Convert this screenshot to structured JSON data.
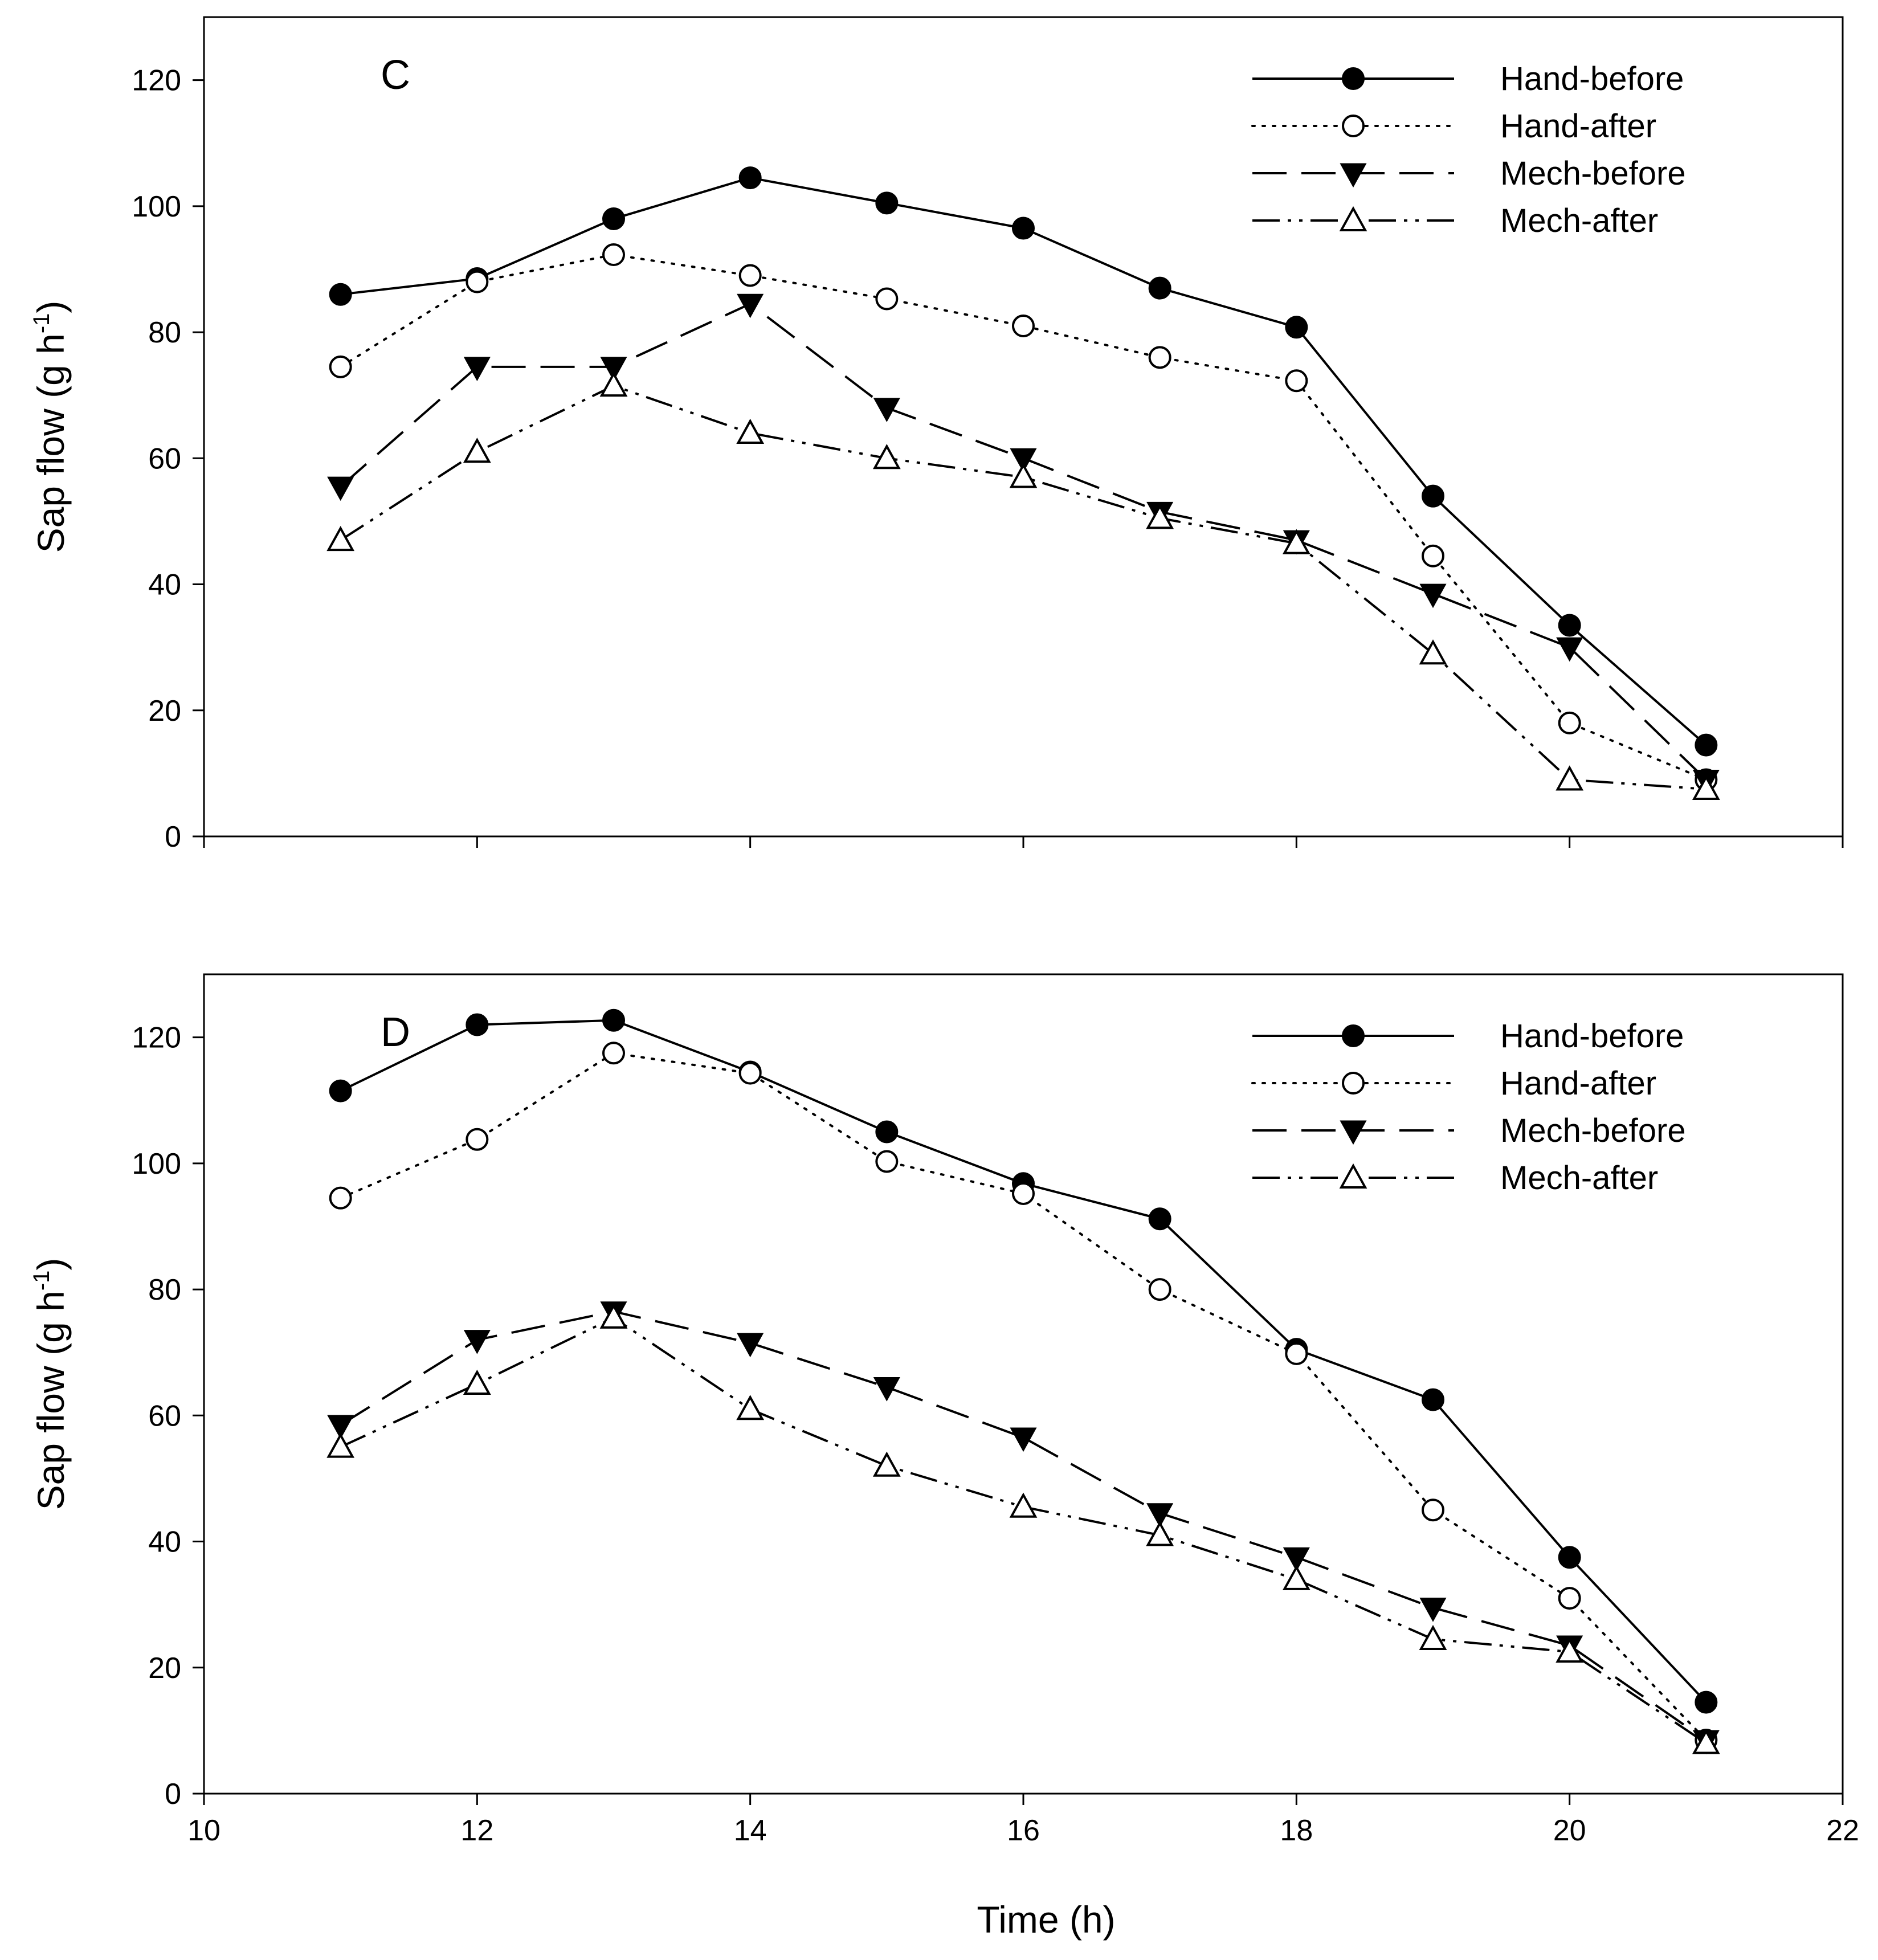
{
  "chart_data": [
    {
      "type": "line",
      "panel_label": "C",
      "title": "",
      "xlabel": "Time (h)",
      "ylabel": "Sap flow (g h⁻¹)",
      "xlim": [
        10,
        22
      ],
      "ylim": [
        0,
        130
      ],
      "xticks": [
        10,
        12,
        14,
        16,
        18,
        20,
        22
      ],
      "yticks": [
        0,
        20,
        40,
        60,
        80,
        100,
        120
      ],
      "x": [
        11,
        12,
        13,
        14,
        15,
        16,
        17,
        18,
        19,
        20,
        21
      ],
      "legend_position": "top-right",
      "series": [
        {
          "name": "Hand-before",
          "marker": "filled-circle",
          "linestyle": "solid",
          "values": [
            86,
            88.5,
            98,
            104.5,
            100.5,
            96.5,
            87,
            80.8,
            54,
            33.5,
            14.5
          ]
        },
        {
          "name": "Hand-after",
          "marker": "open-circle",
          "linestyle": "dotted",
          "values": [
            74.5,
            88,
            92.3,
            89,
            85.3,
            81,
            76,
            72.3,
            44.5,
            18,
            9
          ]
        },
        {
          "name": "Mech-before",
          "marker": "filled-triangle-down",
          "linestyle": "dashed",
          "values": [
            55.5,
            74.5,
            74.5,
            84.5,
            68,
            60,
            51.5,
            47,
            38.5,
            30,
            9
          ]
        },
        {
          "name": "Mech-after",
          "marker": "open-triangle-up",
          "linestyle": "dash-dot-dot",
          "values": [
            47,
            61,
            71.5,
            64,
            60,
            57,
            50.5,
            46.5,
            29,
            9,
            7.5
          ]
        }
      ]
    },
    {
      "type": "line",
      "panel_label": "D",
      "title": "",
      "xlabel": "Time (h)",
      "ylabel": "Sap flow (g h⁻¹)",
      "xlim": [
        10,
        22
      ],
      "ylim": [
        0,
        130
      ],
      "xticks": [
        10,
        12,
        14,
        16,
        18,
        20,
        22
      ],
      "yticks": [
        0,
        20,
        40,
        60,
        80,
        100,
        120
      ],
      "x": [
        11,
        12,
        13,
        14,
        15,
        16,
        17,
        18,
        19,
        20,
        21
      ],
      "legend_position": "top-right",
      "series": [
        {
          "name": "Hand-before",
          "marker": "filled-circle",
          "linestyle": "solid",
          "values": [
            111.5,
            122,
            122.7,
            114.5,
            105,
            96.8,
            91.2,
            70.5,
            62.5,
            37.5,
            14.5
          ]
        },
        {
          "name": "Hand-after",
          "marker": "open-circle",
          "linestyle": "dotted",
          "values": [
            94.5,
            103.8,
            117.5,
            114.3,
            100.3,
            95.2,
            80,
            69.8,
            45,
            31,
            8.5
          ]
        },
        {
          "name": "Mech-before",
          "marker": "filled-triangle-down",
          "linestyle": "dashed",
          "values": [
            58.5,
            72,
            76.5,
            71.5,
            64.5,
            56.5,
            44.5,
            37.5,
            29.5,
            23.5,
            8.5
          ]
        },
        {
          "name": "Mech-after",
          "marker": "open-triangle-up",
          "linestyle": "dash-dot-dot",
          "values": [
            55,
            65,
            75.5,
            61,
            52,
            45.5,
            41,
            34,
            24.5,
            22.5,
            8
          ]
        }
      ]
    }
  ]
}
